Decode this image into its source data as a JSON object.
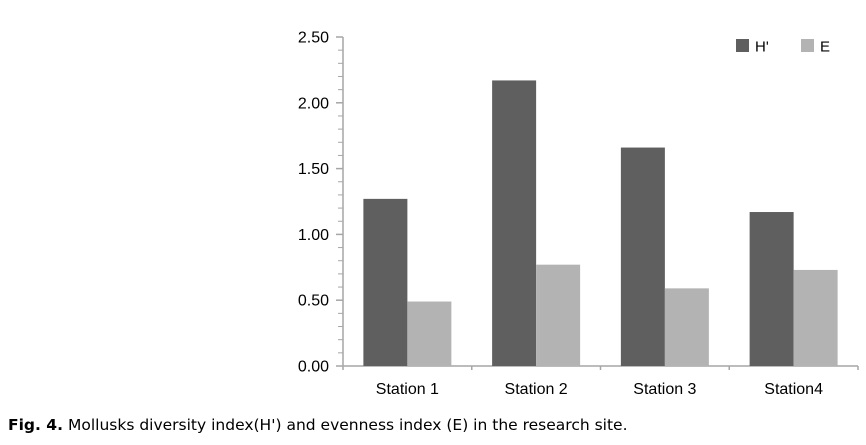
{
  "figure_caption": {
    "label": "Fig. 4.",
    "text": "Mollusks diversity index(H') and evenness index (E) in the research site."
  },
  "chart_data": {
    "type": "bar",
    "title": "",
    "xlabel": "",
    "ylabel": "",
    "categories": [
      "Station 1",
      "Station 2",
      "Station 3",
      "Station4"
    ],
    "series": [
      {
        "name": "H'",
        "color": "#5F5F5F",
        "values": [
          1.27,
          2.17,
          1.66,
          1.17
        ]
      },
      {
        "name": "E",
        "color": "#B3B3B3",
        "values": [
          0.49,
          0.77,
          0.59,
          0.73
        ]
      }
    ],
    "ylim": [
      0,
      2.5
    ],
    "y_ticks": [
      {
        "value": 0.0,
        "label": "0.00"
      },
      {
        "value": 0.5,
        "label": "0.50"
      },
      {
        "value": 1.0,
        "label": "1.00"
      },
      {
        "value": 1.5,
        "label": "1.50"
      },
      {
        "value": 2.0,
        "label": "2.00"
      },
      {
        "value": 2.5,
        "label": "2.50"
      }
    ],
    "minor_tick_step": 0.1,
    "grid": false,
    "legend_position": "top-right",
    "axis_color": "#A6A6A6"
  }
}
